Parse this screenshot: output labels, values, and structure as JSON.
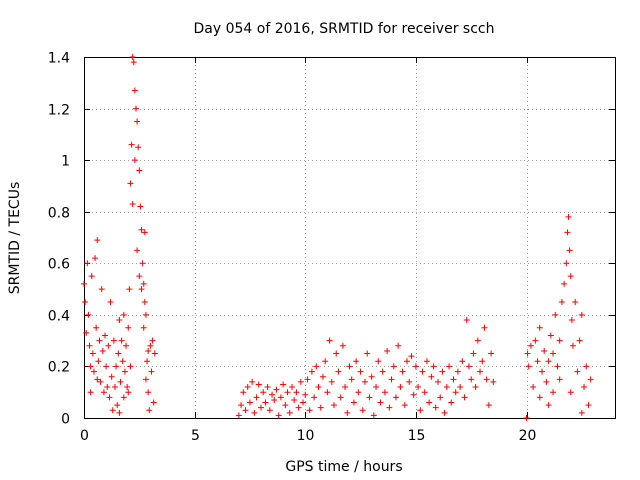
{
  "chart_data": {
    "type": "scatter",
    "title": "Day 054 of 2016, SRMTID for receiver scch",
    "xlabel": "GPS time / hours",
    "ylabel": "SRMTID / TECUs",
    "xlim": [
      0,
      24
    ],
    "ylim": [
      0,
      1.4
    ],
    "xticks": [
      0,
      5,
      10,
      15,
      20
    ],
    "xtick_labels": [
      "0",
      "5",
      "10",
      "15",
      "20"
    ],
    "yticks": [
      0,
      0.2,
      0.4,
      0.6,
      0.8,
      1.0,
      1.2,
      1.4
    ],
    "ytick_labels": [
      "0",
      "0.2",
      "0.4",
      "0.6",
      "0.8",
      "1",
      "1.2",
      "1.4"
    ],
    "grid": true,
    "marker": "+",
    "color": "#ff0000",
    "series": [
      {
        "name": "SRMTID",
        "points": [
          [
            0.0,
            0.52
          ],
          [
            0.05,
            0.45
          ],
          [
            0.1,
            0.33
          ],
          [
            0.15,
            0.6
          ],
          [
            0.2,
            0.4
          ],
          [
            0.25,
            0.28
          ],
          [
            0.3,
            0.2
          ],
          [
            0.35,
            0.55
          ],
          [
            0.4,
            0.25
          ],
          [
            0.45,
            0.18
          ],
          [
            0.5,
            0.62
          ],
          [
            0.55,
            0.35
          ],
          [
            0.6,
            0.69
          ],
          [
            0.65,
            0.22
          ],
          [
            0.7,
            0.3
          ],
          [
            0.75,
            0.14
          ],
          [
            0.8,
            0.5
          ],
          [
            0.85,
            0.26
          ],
          [
            0.9,
            0.1
          ],
          [
            0.95,
            0.32
          ],
          [
            1.0,
            0.2
          ],
          [
            1.05,
            0.12
          ],
          [
            1.1,
            0.28
          ],
          [
            1.15,
            0.08
          ],
          [
            1.2,
            0.45
          ],
          [
            1.25,
            0.16
          ],
          [
            1.3,
            0.03
          ],
          [
            1.35,
            0.3
          ],
          [
            1.4,
            0.12
          ],
          [
            1.45,
            0.2
          ],
          [
            1.5,
            0.05
          ],
          [
            1.55,
            0.25
          ],
          [
            1.6,
            0.38
          ],
          [
            1.65,
            0.14
          ],
          [
            1.7,
            0.3
          ],
          [
            1.75,
            0.22
          ],
          [
            1.8,
            0.4
          ],
          [
            1.85,
            0.18
          ],
          [
            1.9,
            0.28
          ],
          [
            1.95,
            0.12
          ],
          [
            2.0,
            0.35
          ],
          [
            2.05,
            0.5
          ],
          [
            2.1,
            0.91
          ],
          [
            2.15,
            1.06
          ],
          [
            2.2,
            1.4
          ],
          [
            2.25,
            1.38
          ],
          [
            2.3,
            1.27
          ],
          [
            2.35,
            1.2
          ],
          [
            2.4,
            1.15
          ],
          [
            2.45,
            1.05
          ],
          [
            2.5,
            0.96
          ],
          [
            2.55,
            0.82
          ],
          [
            2.6,
            0.73
          ],
          [
            2.65,
            0.6
          ],
          [
            2.7,
            0.52
          ],
          [
            2.75,
            0.45
          ],
          [
            2.8,
            0.4
          ],
          [
            2.85,
            0.22
          ],
          [
            2.9,
            0.1
          ],
          [
            2.95,
            0.03
          ],
          [
            2.2,
            0.83
          ],
          [
            2.3,
            1.0
          ],
          [
            2.4,
            0.65
          ],
          [
            2.5,
            0.55
          ],
          [
            2.6,
            0.5
          ],
          [
            2.7,
            0.35
          ],
          [
            2.8,
            0.15
          ],
          [
            2.9,
            0.26
          ],
          [
            3.0,
            0.28
          ],
          [
            3.05,
            0.18
          ],
          [
            3.1,
            0.3
          ],
          [
            3.15,
            0.06
          ],
          [
            3.2,
            0.25
          ],
          [
            2.1,
            0.2
          ],
          [
            2.0,
            0.1
          ],
          [
            1.8,
            0.08
          ],
          [
            1.6,
            0.02
          ],
          [
            0.3,
            0.1
          ],
          [
            0.6,
            0.15
          ],
          [
            2.75,
            0.72
          ],
          [
            7.0,
            0.01
          ],
          [
            7.1,
            0.05
          ],
          [
            7.2,
            0.1
          ],
          [
            7.3,
            0.03
          ],
          [
            7.4,
            0.12
          ],
          [
            7.5,
            0.06
          ],
          [
            7.6,
            0.14
          ],
          [
            7.7,
            0.02
          ],
          [
            7.8,
            0.08
          ],
          [
            7.9,
            0.13
          ],
          [
            8.0,
            0.04
          ],
          [
            8.1,
            0.1
          ],
          [
            8.2,
            0.06
          ],
          [
            8.3,
            0.12
          ],
          [
            8.4,
            0.03
          ],
          [
            8.5,
            0.09
          ],
          [
            8.6,
            0.07
          ],
          [
            8.7,
            0.11
          ],
          [
            8.8,
            0.01
          ],
          [
            8.9,
            0.08
          ],
          [
            9.0,
            0.13
          ],
          [
            9.1,
            0.05
          ],
          [
            9.2,
            0.1
          ],
          [
            9.3,
            0.02
          ],
          [
            9.4,
            0.12
          ],
          [
            9.5,
            0.07
          ],
          [
            9.6,
            0.1
          ],
          [
            9.7,
            0.04
          ],
          [
            9.8,
            0.14
          ],
          [
            9.9,
            0.06
          ],
          [
            10.0,
            0.09
          ],
          [
            10.1,
            0.15
          ],
          [
            10.2,
            0.03
          ],
          [
            10.3,
            0.18
          ],
          [
            10.4,
            0.08
          ],
          [
            10.5,
            0.2
          ],
          [
            10.6,
            0.12
          ],
          [
            10.7,
            0.04
          ],
          [
            10.8,
            0.16
          ],
          [
            10.9,
            0.22
          ],
          [
            11.0,
            0.1
          ],
          [
            11.1,
            0.3
          ],
          [
            11.2,
            0.14
          ],
          [
            11.3,
            0.05
          ],
          [
            11.4,
            0.25
          ],
          [
            11.5,
            0.18
          ],
          [
            11.6,
            0.08
          ],
          [
            11.7,
            0.28
          ],
          [
            11.8,
            0.12
          ],
          [
            11.9,
            0.02
          ],
          [
            12.0,
            0.2
          ],
          [
            12.1,
            0.15
          ],
          [
            12.2,
            0.06
          ],
          [
            12.3,
            0.22
          ],
          [
            12.4,
            0.1
          ],
          [
            12.5,
            0.18
          ],
          [
            12.6,
            0.03
          ],
          [
            12.7,
            0.14
          ],
          [
            12.8,
            0.25
          ],
          [
            12.9,
            0.08
          ],
          [
            13.0,
            0.16
          ],
          [
            13.1,
            0.01
          ],
          [
            13.2,
            0.12
          ],
          [
            13.3,
            0.22
          ],
          [
            13.4,
            0.06
          ],
          [
            13.5,
            0.18
          ],
          [
            13.6,
            0.1
          ],
          [
            13.7,
            0.26
          ],
          [
            13.8,
            0.04
          ],
          [
            13.9,
            0.15
          ],
          [
            14.0,
            0.2
          ],
          [
            14.1,
            0.08
          ],
          [
            14.2,
            0.28
          ],
          [
            14.3,
            0.12
          ],
          [
            14.4,
            0.18
          ],
          [
            14.5,
            0.05
          ],
          [
            14.6,
            0.22
          ],
          [
            14.7,
            0.14
          ],
          [
            14.8,
            0.24
          ],
          [
            14.9,
            0.09
          ],
          [
            15.0,
            0.2
          ],
          [
            15.1,
            0.12
          ],
          [
            15.2,
            0.03
          ],
          [
            15.3,
            0.18
          ],
          [
            15.4,
            0.1
          ],
          [
            15.5,
            0.22
          ],
          [
            15.6,
            0.06
          ],
          [
            15.7,
            0.16
          ],
          [
            15.8,
            0.2
          ],
          [
            15.9,
            0.04
          ],
          [
            16.0,
            0.14
          ],
          [
            16.1,
            0.08
          ],
          [
            16.2,
            0.18
          ],
          [
            16.3,
            0.02
          ],
          [
            16.4,
            0.12
          ],
          [
            16.5,
            0.2
          ],
          [
            16.6,
            0.06
          ],
          [
            16.7,
            0.15
          ],
          [
            16.8,
            0.1
          ],
          [
            16.9,
            0.18
          ],
          [
            17.0,
            0.12
          ],
          [
            17.1,
            0.22
          ],
          [
            17.2,
            0.08
          ],
          [
            17.3,
            0.38
          ],
          [
            17.4,
            0.2
          ],
          [
            17.5,
            0.15
          ],
          [
            17.6,
            0.25
          ],
          [
            17.7,
            0.12
          ],
          [
            17.8,
            0.3
          ],
          [
            17.9,
            0.18
          ],
          [
            18.0,
            0.22
          ],
          [
            18.1,
            0.35
          ],
          [
            18.2,
            0.15
          ],
          [
            18.3,
            0.05
          ],
          [
            18.4,
            0.25
          ],
          [
            18.5,
            0.14
          ],
          [
            20.0,
            0.0
          ],
          [
            20.05,
            0.25
          ],
          [
            20.1,
            0.2
          ],
          [
            20.2,
            0.28
          ],
          [
            20.3,
            0.12
          ],
          [
            20.4,
            0.3
          ],
          [
            20.5,
            0.22
          ],
          [
            20.6,
            0.08
          ],
          [
            20.7,
            0.18
          ],
          [
            20.8,
            0.26
          ],
          [
            20.9,
            0.14
          ],
          [
            21.0,
            0.22
          ],
          [
            21.1,
            0.32
          ],
          [
            21.2,
            0.1
          ],
          [
            21.3,
            0.4
          ],
          [
            21.4,
            0.2
          ],
          [
            21.5,
            0.3
          ],
          [
            21.6,
            0.45
          ],
          [
            21.7,
            0.52
          ],
          [
            21.8,
            0.6
          ],
          [
            21.85,
            0.72
          ],
          [
            21.9,
            0.78
          ],
          [
            21.95,
            0.65
          ],
          [
            22.0,
            0.55
          ],
          [
            22.05,
            0.38
          ],
          [
            22.1,
            0.28
          ],
          [
            22.2,
            0.45
          ],
          [
            22.3,
            0.18
          ],
          [
            22.4,
            0.3
          ],
          [
            22.5,
            0.4
          ],
          [
            22.6,
            0.12
          ],
          [
            22.7,
            0.2
          ],
          [
            22.8,
            0.05
          ],
          [
            22.9,
            0.15
          ],
          [
            21.0,
            0.05
          ],
          [
            21.5,
            0.15
          ],
          [
            22.0,
            0.1
          ],
          [
            22.5,
            0.02
          ],
          [
            20.6,
            0.35
          ],
          [
            21.2,
            0.25
          ]
        ]
      }
    ]
  }
}
